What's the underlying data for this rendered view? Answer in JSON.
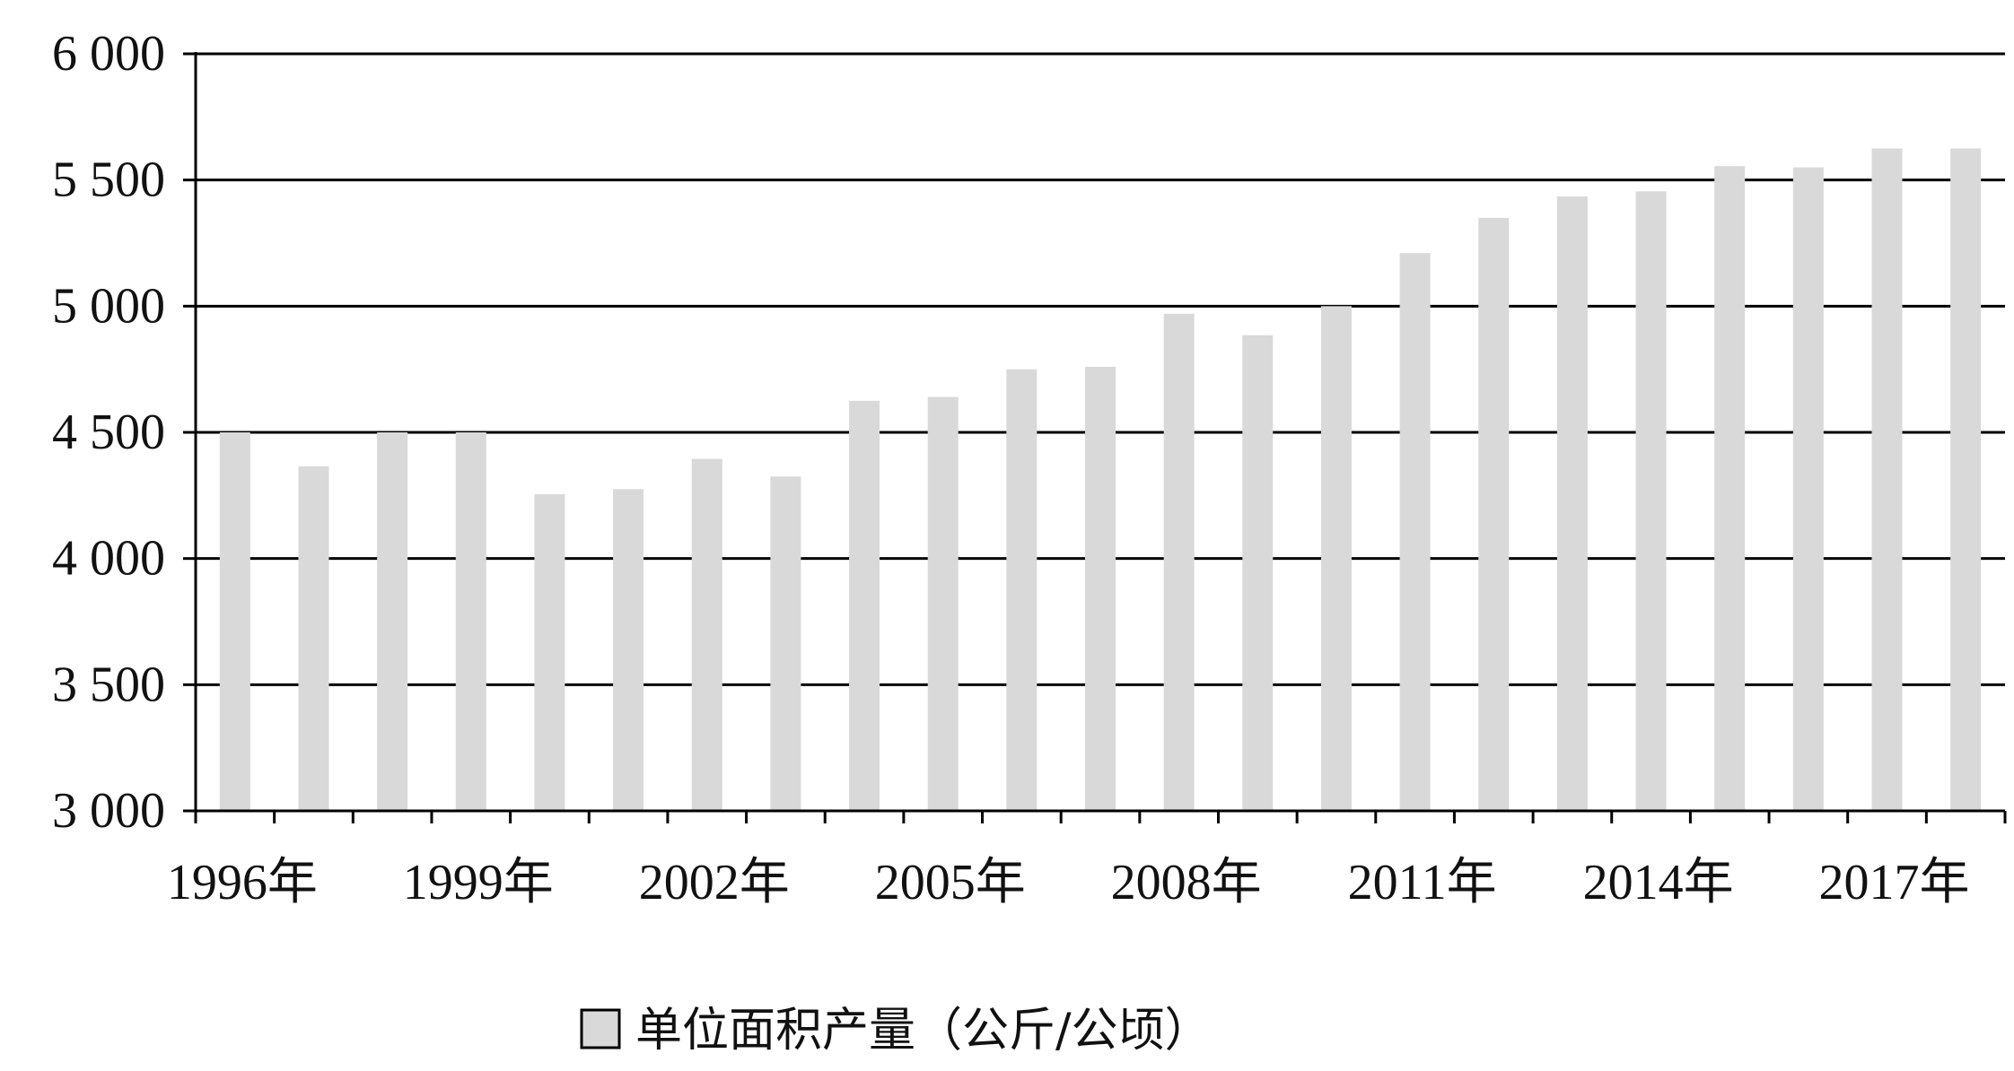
{
  "chart_data": {
    "type": "bar",
    "title": "",
    "xlabel": "",
    "ylabel": "",
    "categories": [
      "1996年",
      "1997年",
      "1998年",
      "1999年",
      "2000年",
      "2001年",
      "2002年",
      "2003年",
      "2004年",
      "2005年",
      "2006年",
      "2007年",
      "2008年",
      "2009年",
      "2010年",
      "2011年",
      "2012年",
      "2013年",
      "2014年",
      "2015年",
      "2016年",
      "2017年",
      "2018年"
    ],
    "x_tick_labels": [
      "1996年",
      "1999年",
      "2002年",
      "2005年",
      "2008年",
      "2011年",
      "2014年",
      "2017年"
    ],
    "y_tick_labels": [
      "3 000",
      "3 500",
      "4 000",
      "4 500",
      "5 000",
      "5 500",
      "6 000"
    ],
    "ylim": [
      3000,
      6000
    ],
    "grid": true,
    "legend_position": "bottom",
    "series": [
      {
        "name": "单位面积产量（公斤/公顷）",
        "color": "#d9d9d9",
        "values": [
          4500,
          4365,
          4500,
          4500,
          4255,
          4275,
          4395,
          4325,
          4625,
          4640,
          4750,
          4760,
          4970,
          4885,
          5000,
          5210,
          5350,
          5435,
          5455,
          5555,
          5550,
          5625,
          5625
        ]
      }
    ]
  }
}
